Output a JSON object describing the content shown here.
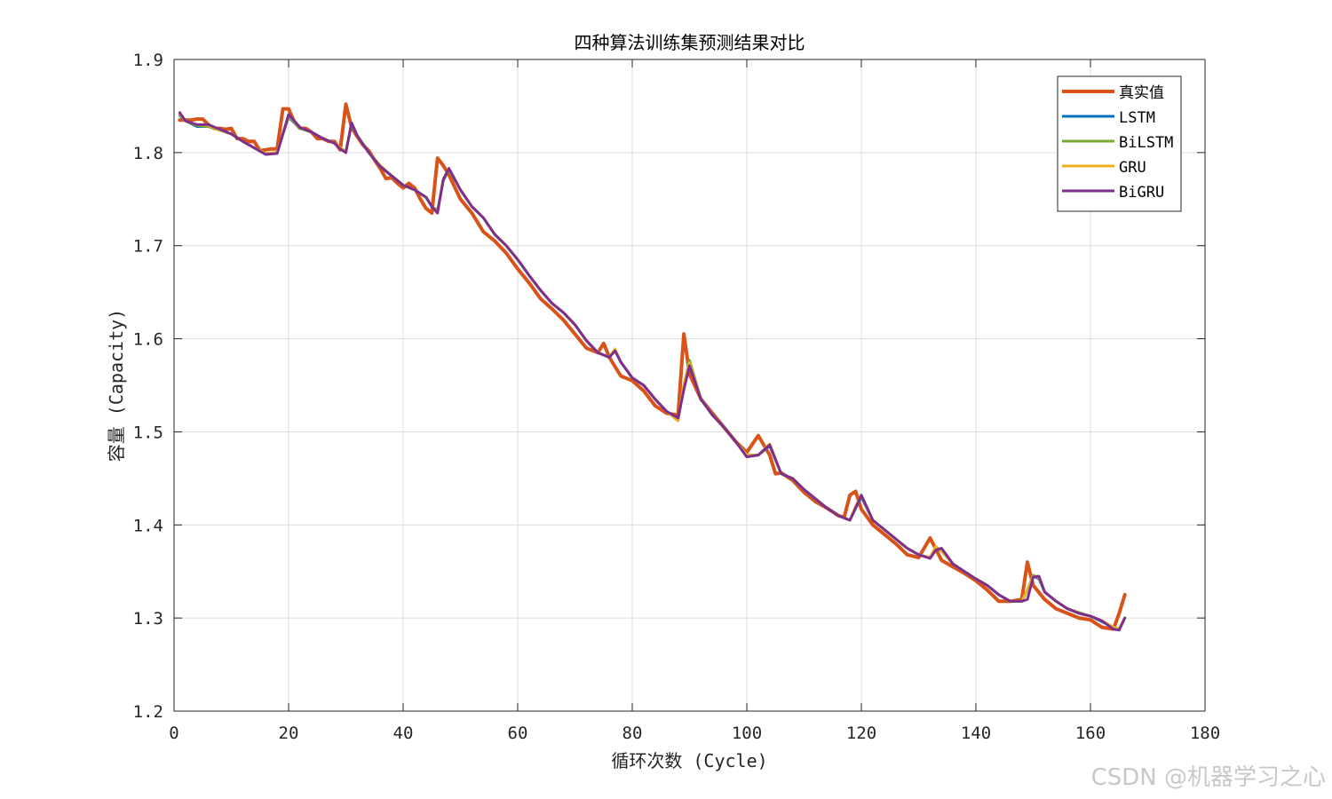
{
  "chart_data": {
    "type": "line",
    "title": "四种算法训练集预测结果对比",
    "xlabel": "循环次数 (Cycle)",
    "ylabel": "容量 (Capacity)",
    "xlim": [
      0,
      180
    ],
    "ylim": [
      1.2,
      1.9
    ],
    "xticks": [
      "0",
      "20",
      "40",
      "60",
      "80",
      "100",
      "120",
      "140",
      "160",
      "180"
    ],
    "yticks": [
      "1.2",
      "1.3",
      "1.4",
      "1.5",
      "1.6",
      "1.7",
      "1.8",
      "1.9"
    ],
    "grid": true,
    "legend_position": "top-right",
    "series": [
      {
        "name": "真实值",
        "color": "#D95319",
        "x": [
          1,
          2,
          3,
          4,
          5,
          6,
          7,
          8,
          9,
          10,
          11,
          12,
          13,
          14,
          15,
          16,
          17,
          18,
          19,
          20,
          21,
          22,
          23,
          24,
          25,
          26,
          27,
          28,
          29,
          30,
          31,
          32,
          33,
          34,
          35,
          36,
          37,
          38,
          39,
          40,
          41,
          42,
          43,
          44,
          45,
          46,
          47,
          48,
          49,
          50,
          52,
          54,
          56,
          58,
          60,
          62,
          64,
          66,
          68,
          70,
          72,
          74,
          75,
          76,
          77,
          78,
          80,
          82,
          84,
          86,
          88,
          89,
          90,
          92,
          94,
          96,
          98,
          100,
          102,
          104,
          105,
          106,
          108,
          110,
          112,
          114,
          116,
          117,
          118,
          119,
          120,
          122,
          124,
          126,
          128,
          130,
          132,
          134,
          136,
          138,
          140,
          142,
          144,
          146,
          148,
          149,
          150,
          152,
          154,
          156,
          158,
          160,
          162,
          164,
          165,
          166
        ],
        "values": [
          1.835,
          1.835,
          1.835,
          1.836,
          1.836,
          1.83,
          1.826,
          1.826,
          1.825,
          1.826,
          1.815,
          1.815,
          1.812,
          1.812,
          1.802,
          1.803,
          1.804,
          1.804,
          1.847,
          1.847,
          1.833,
          1.826,
          1.826,
          1.822,
          1.815,
          1.815,
          1.812,
          1.812,
          1.803,
          1.852,
          1.827,
          1.817,
          1.808,
          1.802,
          1.792,
          1.783,
          1.772,
          1.773,
          1.767,
          1.762,
          1.767,
          1.762,
          1.75,
          1.74,
          1.735,
          1.794,
          1.786,
          1.776,
          1.763,
          1.75,
          1.735,
          1.715,
          1.705,
          1.692,
          1.675,
          1.66,
          1.643,
          1.632,
          1.62,
          1.605,
          1.59,
          1.585,
          1.595,
          1.58,
          1.57,
          1.56,
          1.555,
          1.544,
          1.528,
          1.52,
          1.518,
          1.605,
          1.562,
          1.535,
          1.52,
          1.505,
          1.49,
          1.478,
          1.496,
          1.475,
          1.455,
          1.456,
          1.448,
          1.435,
          1.425,
          1.418,
          1.41,
          1.408,
          1.432,
          1.436,
          1.417,
          1.4,
          1.39,
          1.38,
          1.368,
          1.365,
          1.386,
          1.362,
          1.355,
          1.348,
          1.34,
          1.33,
          1.318,
          1.318,
          1.32,
          1.36,
          1.335,
          1.32,
          1.31,
          1.305,
          1.3,
          1.298,
          1.29,
          1.288,
          1.305,
          1.325
        ]
      },
      {
        "name": "LSTM",
        "color": "#0072BD",
        "x": [
          1,
          2,
          4,
          6,
          8,
          10,
          12,
          14,
          16,
          18,
          19,
          20,
          22,
          24,
          26,
          28,
          29,
          30,
          31,
          32,
          34,
          36,
          38,
          40,
          42,
          44,
          45,
          46,
          47,
          48,
          50,
          52,
          54,
          56,
          58,
          60,
          62,
          64,
          66,
          68,
          70,
          72,
          74,
          76,
          77,
          78,
          80,
          82,
          84,
          86,
          88,
          89,
          90,
          92,
          94,
          96,
          98,
          100,
          102,
          104,
          106,
          108,
          110,
          112,
          114,
          116,
          118,
          119,
          120,
          122,
          124,
          126,
          128,
          130,
          132,
          133,
          134,
          136,
          138,
          140,
          142,
          144,
          146,
          148,
          149,
          150,
          151,
          152,
          154,
          156,
          158,
          160,
          162,
          164,
          165,
          166
        ],
        "values": [
          1.84,
          1.834,
          1.828,
          1.828,
          1.824,
          1.82,
          1.812,
          1.805,
          1.799,
          1.8,
          1.82,
          1.838,
          1.826,
          1.822,
          1.815,
          1.81,
          1.805,
          1.801,
          1.83,
          1.818,
          1.8,
          1.785,
          1.775,
          1.765,
          1.76,
          1.752,
          1.742,
          1.738,
          1.77,
          1.782,
          1.76,
          1.742,
          1.73,
          1.712,
          1.7,
          1.685,
          1.668,
          1.652,
          1.638,
          1.628,
          1.615,
          1.598,
          1.585,
          1.58,
          1.588,
          1.575,
          1.558,
          1.55,
          1.535,
          1.522,
          1.512,
          1.548,
          1.575,
          1.535,
          1.518,
          1.505,
          1.49,
          1.475,
          1.475,
          1.485,
          1.455,
          1.45,
          1.438,
          1.428,
          1.418,
          1.41,
          1.405,
          1.418,
          1.43,
          1.405,
          1.395,
          1.385,
          1.375,
          1.368,
          1.365,
          1.375,
          1.372,
          1.358,
          1.35,
          1.342,
          1.335,
          1.325,
          1.318,
          1.318,
          1.33,
          1.345,
          1.342,
          1.328,
          1.318,
          1.31,
          1.305,
          1.302,
          1.296,
          1.29,
          1.288,
          1.3
        ]
      },
      {
        "name": "BiLSTM",
        "color": "#77AC30",
        "x": [
          1,
          2,
          4,
          6,
          8,
          10,
          12,
          14,
          16,
          18,
          19,
          20,
          22,
          24,
          26,
          28,
          29,
          30,
          31,
          32,
          34,
          36,
          38,
          40,
          42,
          44,
          45,
          46,
          47,
          48,
          50,
          52,
          54,
          56,
          58,
          60,
          62,
          64,
          66,
          68,
          70,
          72,
          74,
          76,
          77,
          78,
          80,
          82,
          84,
          86,
          88,
          89,
          90,
          92,
          94,
          96,
          98,
          100,
          102,
          104,
          106,
          108,
          110,
          112,
          114,
          116,
          118,
          119,
          120,
          122,
          124,
          126,
          128,
          130,
          132,
          133,
          134,
          136,
          138,
          140,
          142,
          144,
          146,
          148,
          149,
          150,
          151,
          152,
          154,
          156,
          158,
          160,
          162,
          164,
          165,
          166
        ],
        "values": [
          1.841,
          1.834,
          1.829,
          1.828,
          1.824,
          1.82,
          1.812,
          1.805,
          1.799,
          1.8,
          1.82,
          1.839,
          1.826,
          1.822,
          1.815,
          1.81,
          1.805,
          1.801,
          1.831,
          1.818,
          1.8,
          1.786,
          1.775,
          1.765,
          1.76,
          1.752,
          1.742,
          1.737,
          1.771,
          1.782,
          1.76,
          1.742,
          1.73,
          1.712,
          1.7,
          1.685,
          1.668,
          1.652,
          1.638,
          1.628,
          1.615,
          1.598,
          1.585,
          1.58,
          1.588,
          1.575,
          1.558,
          1.55,
          1.535,
          1.522,
          1.512,
          1.55,
          1.577,
          1.535,
          1.518,
          1.505,
          1.49,
          1.475,
          1.475,
          1.486,
          1.455,
          1.45,
          1.438,
          1.428,
          1.418,
          1.41,
          1.405,
          1.419,
          1.431,
          1.405,
          1.395,
          1.385,
          1.375,
          1.368,
          1.365,
          1.376,
          1.372,
          1.358,
          1.35,
          1.342,
          1.335,
          1.325,
          1.318,
          1.318,
          1.33,
          1.346,
          1.343,
          1.328,
          1.318,
          1.31,
          1.306,
          1.302,
          1.297,
          1.29,
          1.288,
          1.3
        ]
      },
      {
        "name": "GRU",
        "color": "#EDB120",
        "x": [
          1,
          2,
          4,
          6,
          8,
          10,
          12,
          14,
          16,
          18,
          19,
          20,
          22,
          24,
          26,
          28,
          29,
          30,
          31,
          32,
          34,
          36,
          38,
          40,
          42,
          44,
          45,
          46,
          47,
          48,
          50,
          52,
          54,
          56,
          58,
          60,
          62,
          64,
          66,
          68,
          70,
          72,
          74,
          76,
          77,
          78,
          80,
          82,
          84,
          86,
          88,
          89,
          90,
          92,
          94,
          96,
          98,
          100,
          102,
          104,
          106,
          108,
          110,
          112,
          114,
          116,
          118,
          119,
          120,
          122,
          124,
          126,
          128,
          130,
          132,
          133,
          134,
          136,
          138,
          140,
          142,
          144,
          146,
          148,
          149,
          150,
          151,
          152,
          154,
          156,
          158,
          160,
          162,
          164,
          165,
          166
        ],
        "values": [
          1.842,
          1.834,
          1.83,
          1.829,
          1.824,
          1.82,
          1.812,
          1.805,
          1.799,
          1.8,
          1.82,
          1.84,
          1.827,
          1.822,
          1.815,
          1.81,
          1.805,
          1.801,
          1.832,
          1.818,
          1.8,
          1.786,
          1.775,
          1.765,
          1.76,
          1.752,
          1.742,
          1.736,
          1.772,
          1.783,
          1.76,
          1.742,
          1.73,
          1.712,
          1.7,
          1.685,
          1.668,
          1.652,
          1.638,
          1.628,
          1.615,
          1.598,
          1.585,
          1.58,
          1.589,
          1.575,
          1.558,
          1.55,
          1.535,
          1.522,
          1.512,
          1.551,
          1.574,
          1.535,
          1.518,
          1.505,
          1.49,
          1.475,
          1.475,
          1.487,
          1.455,
          1.45,
          1.438,
          1.428,
          1.418,
          1.41,
          1.405,
          1.42,
          1.432,
          1.405,
          1.395,
          1.385,
          1.375,
          1.368,
          1.365,
          1.377,
          1.372,
          1.358,
          1.35,
          1.342,
          1.335,
          1.325,
          1.318,
          1.318,
          1.33,
          1.345,
          1.344,
          1.328,
          1.318,
          1.31,
          1.305,
          1.302,
          1.297,
          1.29,
          1.288,
          1.3
        ]
      },
      {
        "name": "BiGRU",
        "color": "#7E2F8E",
        "x": [
          1,
          2,
          4,
          6,
          8,
          10,
          12,
          14,
          16,
          18,
          19,
          20,
          22,
          24,
          26,
          28,
          29,
          30,
          31,
          32,
          34,
          36,
          38,
          40,
          42,
          44,
          45,
          46,
          47,
          48,
          50,
          52,
          54,
          56,
          58,
          60,
          62,
          64,
          66,
          68,
          70,
          72,
          74,
          76,
          77,
          78,
          80,
          82,
          84,
          86,
          88,
          89,
          90,
          92,
          94,
          96,
          98,
          100,
          102,
          104,
          106,
          108,
          110,
          112,
          114,
          116,
          118,
          119,
          120,
          122,
          124,
          126,
          128,
          130,
          132,
          133,
          134,
          136,
          138,
          140,
          142,
          144,
          146,
          148,
          149,
          150,
          151,
          152,
          154,
          156,
          158,
          160,
          162,
          164,
          165,
          166
        ],
        "values": [
          1.843,
          1.834,
          1.83,
          1.83,
          1.825,
          1.82,
          1.812,
          1.805,
          1.798,
          1.799,
          1.82,
          1.841,
          1.827,
          1.822,
          1.815,
          1.81,
          1.804,
          1.8,
          1.832,
          1.818,
          1.8,
          1.785,
          1.775,
          1.765,
          1.76,
          1.752,
          1.742,
          1.735,
          1.771,
          1.783,
          1.76,
          1.742,
          1.73,
          1.712,
          1.7,
          1.685,
          1.668,
          1.652,
          1.638,
          1.628,
          1.615,
          1.598,
          1.585,
          1.58,
          1.587,
          1.575,
          1.558,
          1.55,
          1.535,
          1.522,
          1.515,
          1.545,
          1.571,
          1.535,
          1.518,
          1.505,
          1.49,
          1.473,
          1.475,
          1.486,
          1.455,
          1.45,
          1.438,
          1.428,
          1.418,
          1.41,
          1.405,
          1.418,
          1.432,
          1.405,
          1.395,
          1.385,
          1.375,
          1.368,
          1.364,
          1.373,
          1.375,
          1.358,
          1.35,
          1.342,
          1.335,
          1.325,
          1.318,
          1.318,
          1.32,
          1.344,
          1.345,
          1.328,
          1.318,
          1.31,
          1.305,
          1.302,
          1.297,
          1.288,
          1.287,
          1.3
        ]
      }
    ]
  },
  "watermark": "CSDN @机器学习之心"
}
